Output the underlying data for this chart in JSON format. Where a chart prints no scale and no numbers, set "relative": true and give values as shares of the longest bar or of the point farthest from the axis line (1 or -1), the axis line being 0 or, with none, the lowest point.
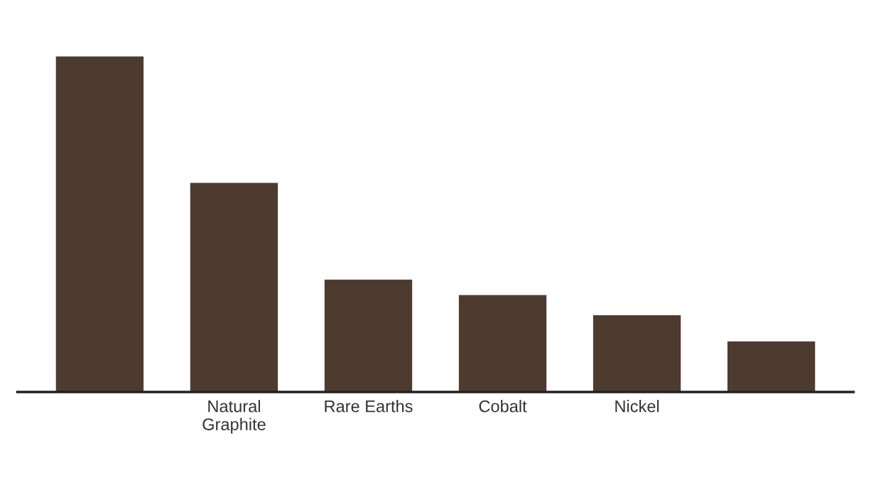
{
  "chart_data": {
    "type": "bar",
    "relative": true,
    "categories": [
      null,
      "Natural\nGraphite",
      "Rare Earths",
      "Cobalt",
      "Nickel",
      null
    ],
    "values": [
      1,
      0.624,
      0.336,
      0.29,
      0.23,
      0.152
    ],
    "color": "#4e3b30",
    "grid": false,
    "legend": false
  }
}
